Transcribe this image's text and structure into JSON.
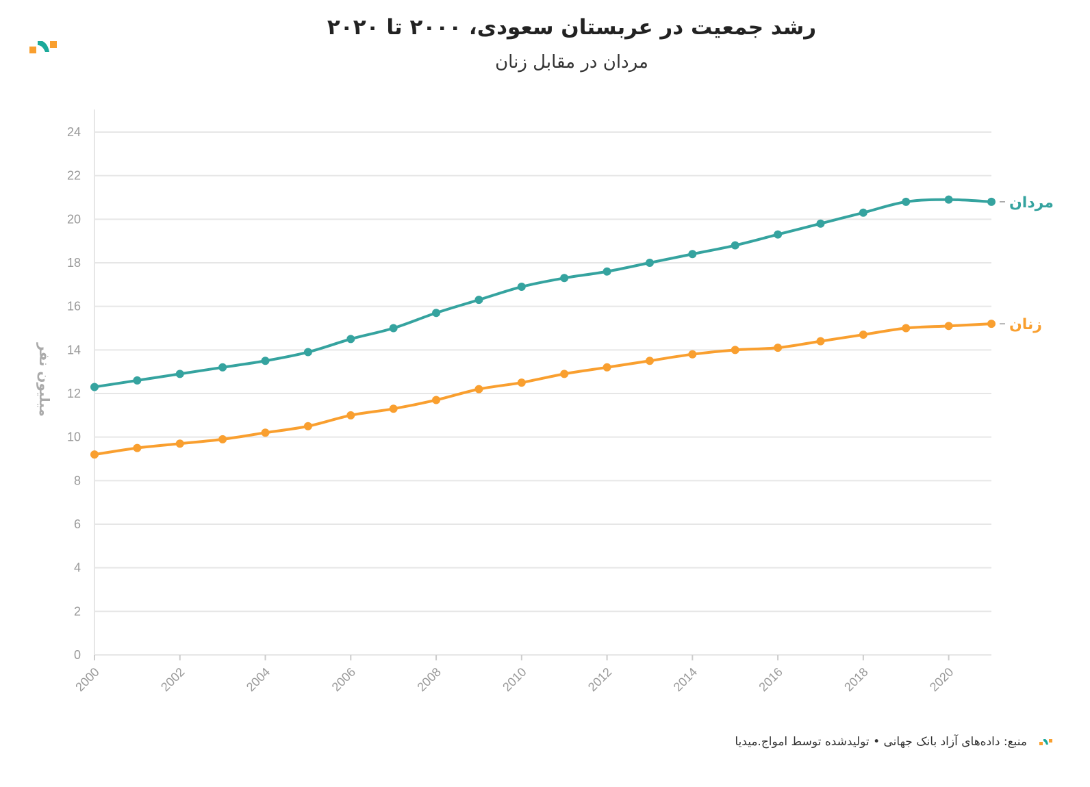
{
  "chart_data": {
    "type": "line",
    "title": "رشد جمعیت در عربستان سعودی، ۲۰۰۰ تا ۲۰۲۰",
    "subtitle": "مردان در مقابل زنان",
    "xlabel": "",
    "ylabel": "میلیون نفر",
    "xlim": [
      2000,
      2021
    ],
    "ylim": [
      0,
      24
    ],
    "x_ticks": [
      2000,
      2002,
      2004,
      2006,
      2008,
      2010,
      2012,
      2014,
      2016,
      2018,
      2020
    ],
    "y_ticks": [
      0,
      2,
      4,
      6,
      8,
      10,
      12,
      14,
      16,
      18,
      20,
      22,
      24
    ],
    "grid": true,
    "legend": "direct labels at line ends (right)",
    "x": [
      2000,
      2001,
      2002,
      2003,
      2004,
      2005,
      2006,
      2007,
      2008,
      2009,
      2010,
      2011,
      2012,
      2013,
      2014,
      2015,
      2016,
      2017,
      2018,
      2019,
      2020,
      2021
    ],
    "series": [
      {
        "name": "مردان",
        "color": "#35a39f",
        "values": [
          12.3,
          12.6,
          12.9,
          13.2,
          13.5,
          13.9,
          14.5,
          15.0,
          15.7,
          16.3,
          16.9,
          17.3,
          17.6,
          18.0,
          18.4,
          18.8,
          19.3,
          19.8,
          20.3,
          20.8,
          20.9,
          20.8
        ]
      },
      {
        "name": "زنان",
        "color": "#f99f2f",
        "values": [
          9.2,
          9.5,
          9.7,
          9.9,
          10.2,
          10.5,
          11.0,
          11.3,
          11.7,
          12.2,
          12.5,
          12.9,
          13.2,
          13.5,
          13.8,
          14.0,
          14.1,
          14.4,
          14.7,
          15.0,
          15.1,
          15.2
        ]
      }
    ]
  },
  "footer": "منبع: داده‌های آزاد بانک جهانی • تولیدشده توسط امواج.میدیا",
  "colors": {
    "logo_orange": "#f99f2f",
    "logo_teal": "#1aa99a"
  }
}
